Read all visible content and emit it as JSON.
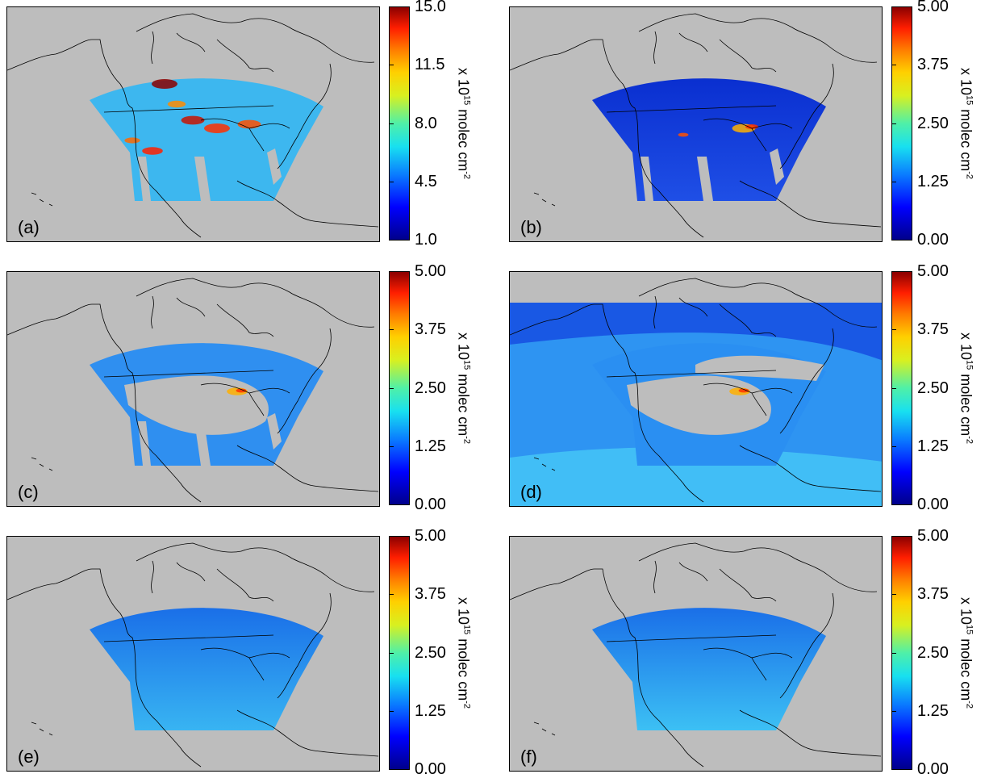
{
  "unit_label": {
    "prefix": "x 10",
    "exp": "15",
    "mid": " molec cm",
    "exp2": "-2"
  },
  "colormap": [
    "#00008b",
    "#0000ff",
    "#0a7cff",
    "#18e0f0",
    "#4ff0a8",
    "#d8f020",
    "#ffd000",
    "#ff7a00",
    "#ff1e00",
    "#8b0000"
  ],
  "panels": [
    {
      "id": "a",
      "label": "(a)",
      "ticks": [
        "15.0",
        "11.5",
        "8.0",
        "4.5",
        "1.0"
      ],
      "fill": "#3db7ef",
      "coverage": "swath",
      "hotspots": "strong"
    },
    {
      "id": "b",
      "label": "(b)",
      "ticks": [
        "5.00",
        "3.75",
        "2.50",
        "1.25",
        "0.00"
      ],
      "fill": "#1f4fe6",
      "coverage": "swath",
      "hotspots": "medium"
    },
    {
      "id": "c",
      "label": "(c)",
      "ticks": [
        "5.00",
        "3.75",
        "2.50",
        "1.25",
        "0.00"
      ],
      "fill": "#2f8ff0",
      "coverage": "sparse",
      "hotspots": "small"
    },
    {
      "id": "d",
      "label": "(d)",
      "ticks": [
        "5.00",
        "3.75",
        "2.50",
        "1.25",
        "0.00"
      ],
      "fill": "#2a8ff2",
      "coverage": "full",
      "hotspots": "small"
    },
    {
      "id": "e",
      "label": "(e)",
      "ticks": [
        "5.00",
        "3.75",
        "2.50",
        "1.25",
        "0.00"
      ],
      "fill": "#38b4f2",
      "coverage": "smooth",
      "hotspots": "none"
    },
    {
      "id": "f",
      "label": "(f)",
      "ticks": [
        "5.00",
        "3.75",
        "2.50",
        "1.25",
        "0.00"
      ],
      "fill": "#3cc0f4",
      "coverage": "smooth",
      "hotspots": "none"
    }
  ]
}
